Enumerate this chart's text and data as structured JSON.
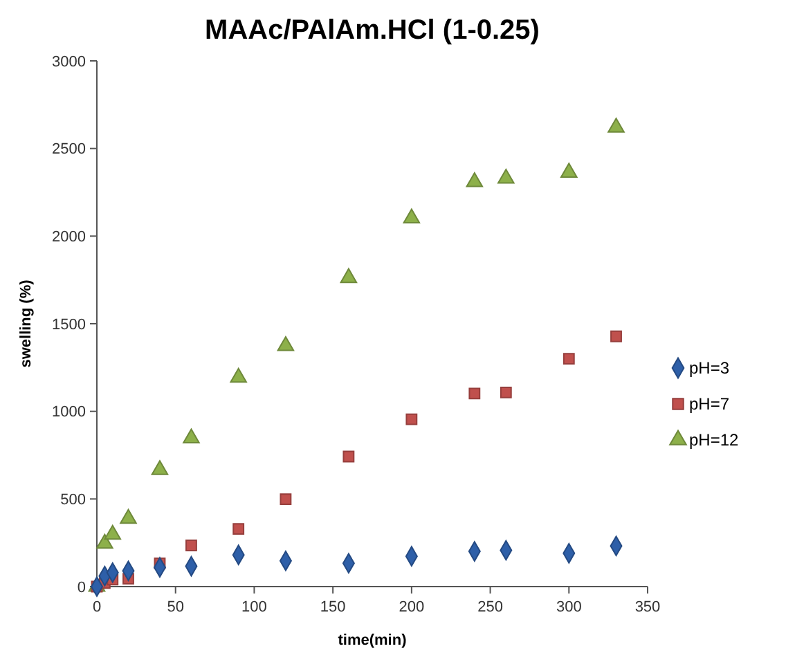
{
  "chart_data": {
    "type": "scatter",
    "title": "MAAc/PAlAm.HCl (1-0.25)",
    "xlabel": "time(min)",
    "ylabel": "swelling (%)",
    "x": [
      0,
      5,
      10,
      20,
      40,
      60,
      90,
      120,
      160,
      200,
      240,
      260,
      300,
      330
    ],
    "series": [
      {
        "name": "pH=3",
        "color": "#2e5fa8",
        "marker": "diamond",
        "values": [
          0,
          60,
          80,
          90,
          110,
          116,
          181,
          147,
          133,
          173,
          201,
          207,
          190,
          232
        ]
      },
      {
        "name": "pH=7",
        "color": "#c0504d",
        "marker": "square",
        "values": [
          0,
          20,
          40,
          45,
          133,
          235,
          329,
          499,
          742,
          955,
          1102,
          1108,
          1300,
          1428
        ]
      },
      {
        "name": "pH=12",
        "color": "#8db04a",
        "marker": "triangle",
        "values": [
          0,
          246,
          297,
          388,
          666,
          847,
          1193,
          1374,
          1762,
          2102,
          2309,
          2329,
          2363,
          2620
        ]
      }
    ],
    "xlim": [
      0,
      350
    ],
    "xticks": [
      0,
      50,
      100,
      150,
      200,
      250,
      300,
      350
    ],
    "ylim": [
      0,
      3000
    ],
    "yticks": [
      0,
      500,
      1000,
      1500,
      2000,
      2500,
      3000
    ],
    "grid": false,
    "legend": "right"
  }
}
